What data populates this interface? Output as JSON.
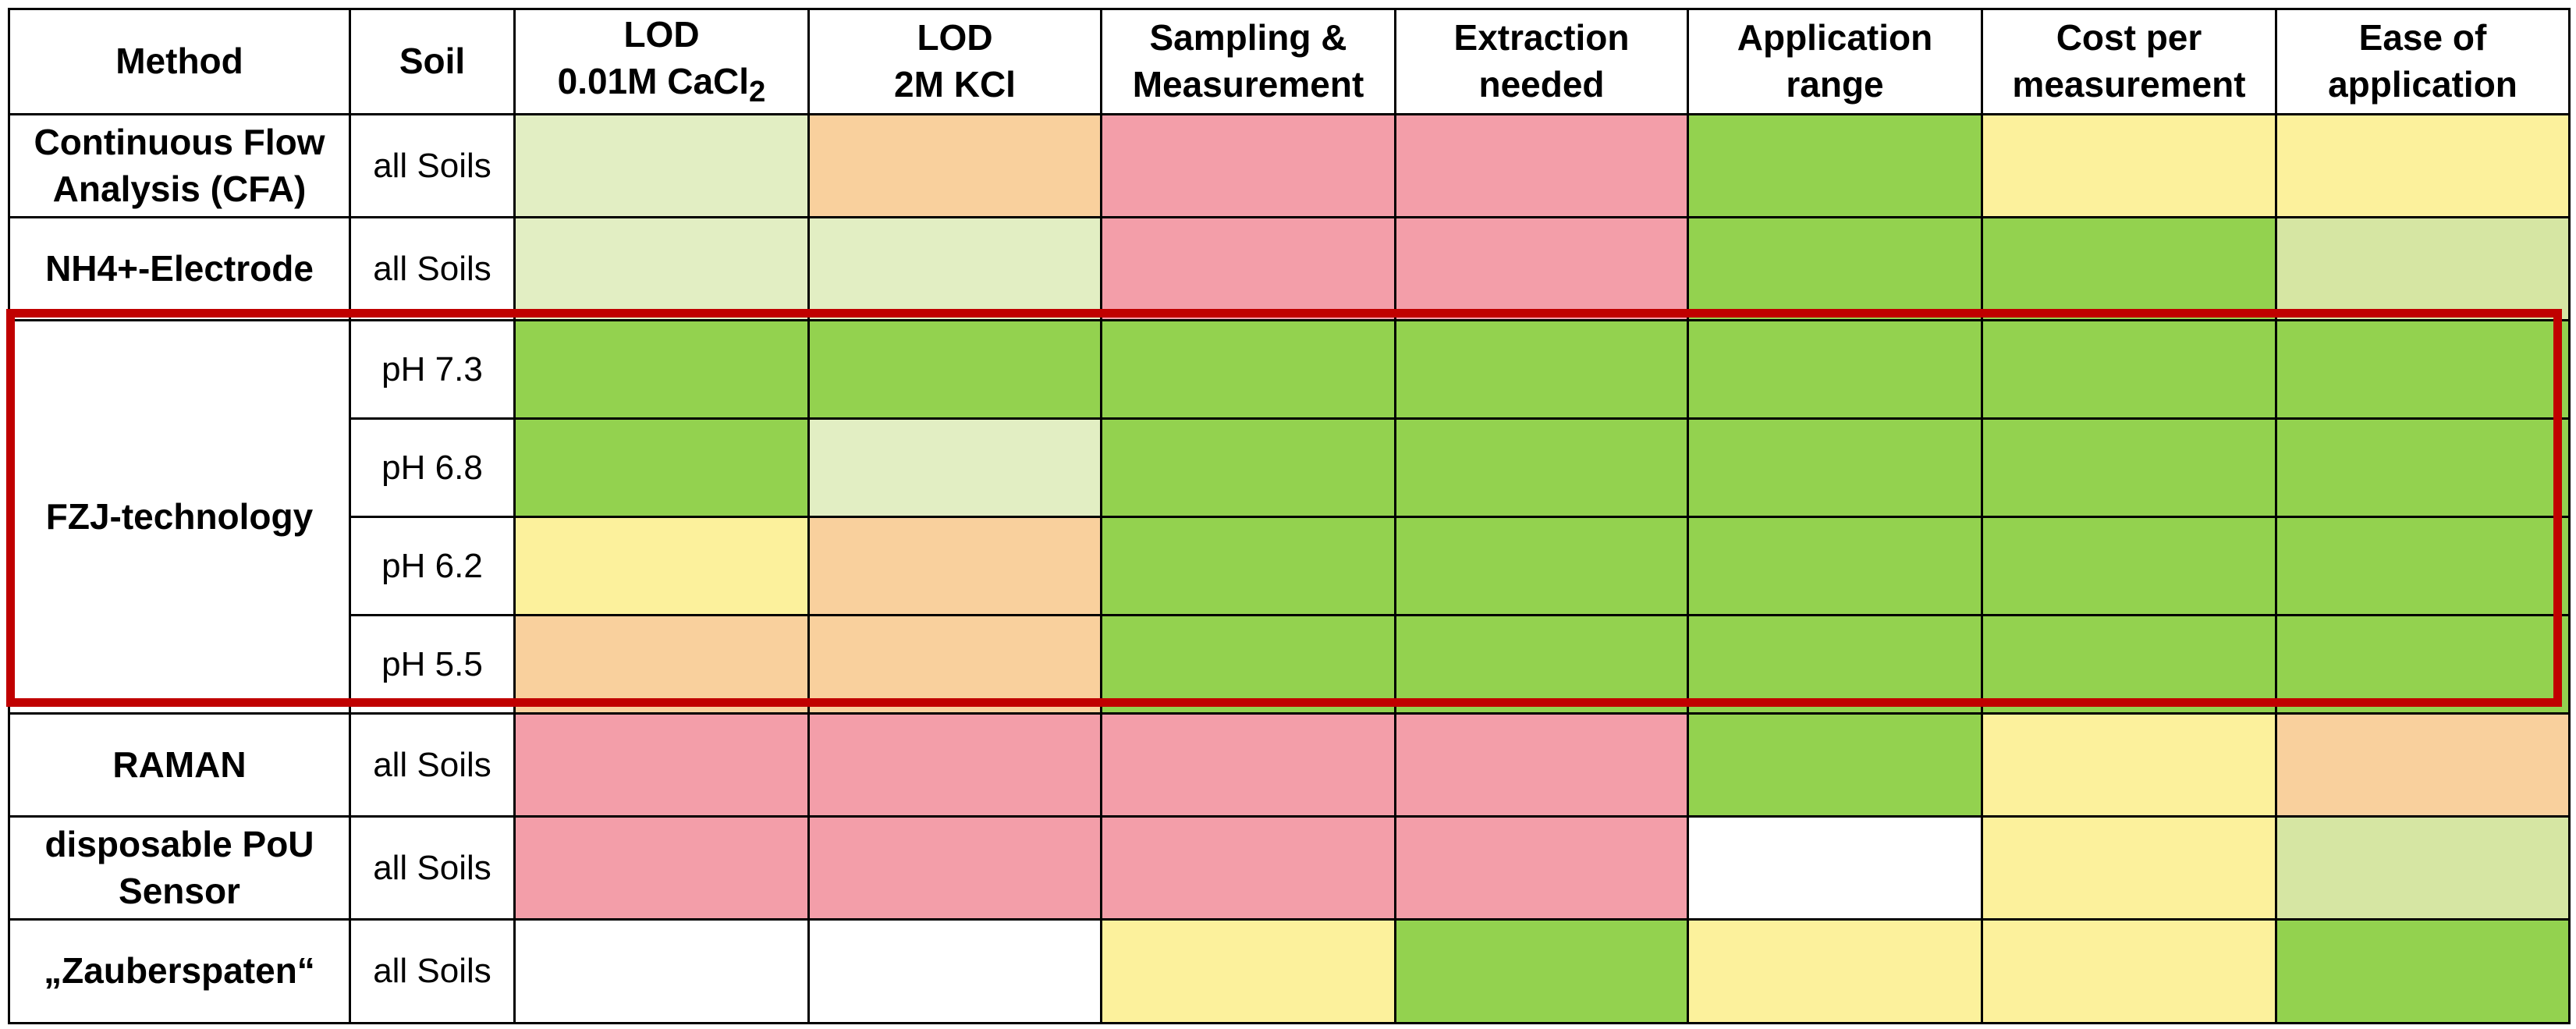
{
  "colors": {
    "pink": "#f39ea9",
    "orange": "#f9d09d",
    "yellow": "#fcf19c",
    "lightgreen": "#e2eec3",
    "olive": "#d6e6a3",
    "green": "#93d24f",
    "white": "#ffffff",
    "highlight": "#c00000"
  },
  "headers": {
    "method": "Method",
    "soil": "Soil",
    "lod_cacl2_l1": "LOD",
    "lod_cacl2_l2": "0.01M CaCl",
    "lod_cacl2_sub": "2",
    "lod_kcl_l1": "LOD",
    "lod_kcl_l2": "2M KCl",
    "sampling_l1": "Sampling &",
    "sampling_l2": "Measurement",
    "extraction_l1": "Extraction",
    "extraction_l2": "needed",
    "application_l1": "Application",
    "application_l2": "range",
    "cost_l1": "Cost per",
    "cost_l2": "measurement",
    "ease_l1": "Ease of",
    "ease_l2": "application"
  },
  "rows": {
    "cfa": {
      "method_l1": "Continuous Flow",
      "method_l2": "Analysis (CFA)",
      "soil": "all Soils"
    },
    "nh4": {
      "method": "NH4+-Electrode",
      "soil": "all Soils"
    },
    "fzj": {
      "method": "FZJ-technology",
      "soil_1": "pH 7.3",
      "soil_2": "pH 6.8",
      "soil_3": "pH 6.2",
      "soil_4": "pH 5.5"
    },
    "raman": {
      "method": "RAMAN",
      "soil": "all Soils"
    },
    "pou": {
      "method_l1": "disposable PoU",
      "method_l2": "Sensor",
      "soil": "all Soils"
    },
    "zauber": {
      "method": "„Zauberspaten“",
      "soil": "all Soils"
    }
  }
}
